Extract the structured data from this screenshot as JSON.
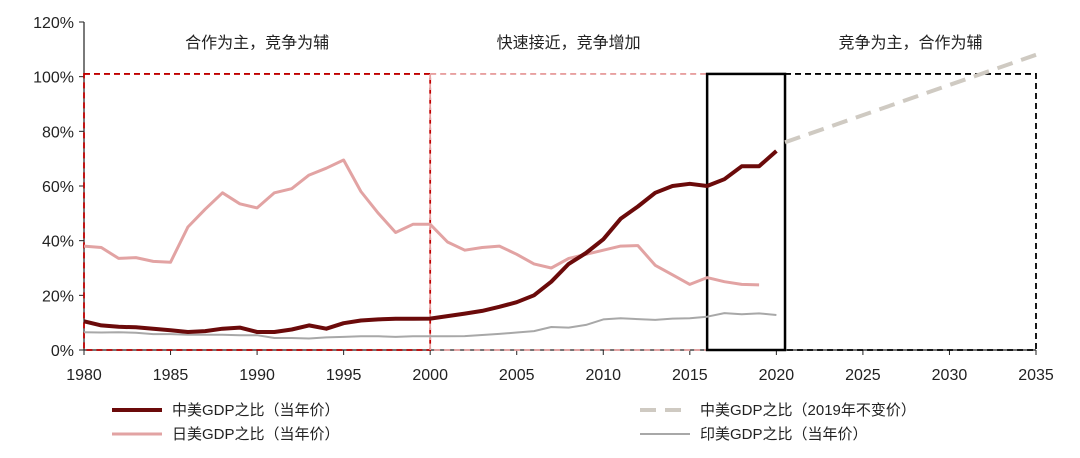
{
  "chart_data": {
    "type": "line",
    "x_range": [
      1980,
      2035
    ],
    "y_range": [
      0,
      120
    ],
    "x_ticks": [
      "1980",
      "1985",
      "1990",
      "1995",
      "2000",
      "2005",
      "2010",
      "2015",
      "2020",
      "2025",
      "2030",
      "2035"
    ],
    "y_ticks": [
      "0%",
      "20%",
      "40%",
      "60%",
      "80%",
      "100%",
      "120%"
    ],
    "eras": [
      {
        "label": "合作为主，竞争为辅",
        "from": 1980,
        "to": 2000,
        "color": "#c00000",
        "dash": "6,4"
      },
      {
        "label": "快速接近，竞争增加",
        "from": 2000,
        "to": 2016,
        "color": "#e8a0a0",
        "dash": "6,4"
      },
      {
        "label": "竞争为主，合作为辅",
        "from": 2020.5,
        "to": 2035,
        "color": "#000000",
        "dash": "6,4"
      }
    ],
    "highlight_box": {
      "from": 2016,
      "to": 2020.5,
      "y_top": 101
    },
    "series": [
      {
        "name": "中美GDP之比（当年价）",
        "color": "#6b0a0a",
        "width": 4,
        "dash": "",
        "x": [
          1980,
          1981,
          1982,
          1983,
          1984,
          1985,
          1986,
          1987,
          1988,
          1989,
          1990,
          1991,
          1992,
          1993,
          1994,
          1995,
          1996,
          1997,
          1998,
          1999,
          2000,
          2001,
          2002,
          2003,
          2004,
          2005,
          2006,
          2007,
          2008,
          2009,
          2010,
          2011,
          2012,
          2013,
          2014,
          2015,
          2016,
          2017,
          2018,
          2019,
          2020
        ],
        "y": [
          10.5,
          9,
          8.5,
          8.3,
          7.8,
          7.2,
          6.6,
          6.9,
          7.8,
          8.2,
          6.6,
          6.6,
          7.5,
          9,
          7.8,
          9.8,
          10.8,
          11.2,
          11.4,
          11.4,
          11.5,
          12.4,
          13.3,
          14.3,
          15.8,
          17.5,
          20,
          25,
          31.5,
          35.5,
          40.5,
          48,
          52.5,
          57.5,
          60,
          60.8,
          60,
          62.5,
          67.2,
          67.2,
          72.8
        ]
      },
      {
        "name": "中美GDP之比（2019年不变价）",
        "color": "#cfcac2",
        "width": 4,
        "dash": "16,9",
        "x": [
          2020.5,
          2035
        ],
        "y": [
          76,
          108
        ]
      },
      {
        "name": "日美GDP之比（当年价）",
        "color": "#e2a3a3",
        "width": 3,
        "dash": "",
        "x": [
          1980,
          1981,
          1982,
          1983,
          1984,
          1985,
          1986,
          1987,
          1988,
          1989,
          1990,
          1991,
          1992,
          1993,
          1994,
          1995,
          1996,
          1997,
          1998,
          1999,
          2000,
          2001,
          2002,
          2003,
          2004,
          2005,
          2006,
          2007,
          2008,
          2009,
          2010,
          2011,
          2012,
          2013,
          2014,
          2015,
          2016,
          2017,
          2018,
          2019
        ],
        "y": [
          38,
          37.5,
          33.5,
          33.8,
          32.4,
          32.1,
          45,
          51.5,
          57.5,
          53.5,
          52,
          57.5,
          59,
          64,
          66.5,
          69.5,
          58,
          50,
          43,
          46,
          46,
          39.5,
          36.5,
          37.5,
          38,
          35,
          31.5,
          30,
          33.5,
          35,
          36.5,
          38,
          38.2,
          31,
          27.5,
          24,
          26.5,
          25,
          24,
          23.8
        ]
      },
      {
        "name": "印美GDP之比（当年价）",
        "color": "#a8a8a8",
        "width": 2,
        "dash": "",
        "x": [
          1980,
          1981,
          1982,
          1983,
          1984,
          1985,
          1986,
          1987,
          1988,
          1989,
          1990,
          1991,
          1992,
          1993,
          1994,
          1995,
          1996,
          1997,
          1998,
          1999,
          2000,
          2001,
          2002,
          2003,
          2004,
          2005,
          2006,
          2007,
          2008,
          2009,
          2010,
          2011,
          2012,
          2013,
          2014,
          2015,
          2016,
          2017,
          2018,
          2019,
          2020
        ],
        "y": [
          6.5,
          6.4,
          6.5,
          6.3,
          5.8,
          5.8,
          5.6,
          5.6,
          5.6,
          5.4,
          5.4,
          4.4,
          4.4,
          4.2,
          4.6,
          4.8,
          5,
          5,
          4.8,
          5,
          5,
          5,
          5.1,
          5.5,
          5.9,
          6.4,
          6.9,
          8.4,
          8.2,
          9.2,
          11.2,
          11.6,
          11.3,
          11,
          11.5,
          11.6,
          12.2,
          13.5,
          13.1,
          13.4,
          12.8
        ]
      }
    ],
    "legend": [
      {
        "series": 0,
        "label": "中美GDP之比（当年价）"
      },
      {
        "series": 1,
        "label": "中美GDP之比（2019年不变价）"
      },
      {
        "series": 2,
        "label": "日美GDP之比（当年价）"
      },
      {
        "series": 3,
        "label": "印美GDP之比（当年价）"
      }
    ]
  }
}
